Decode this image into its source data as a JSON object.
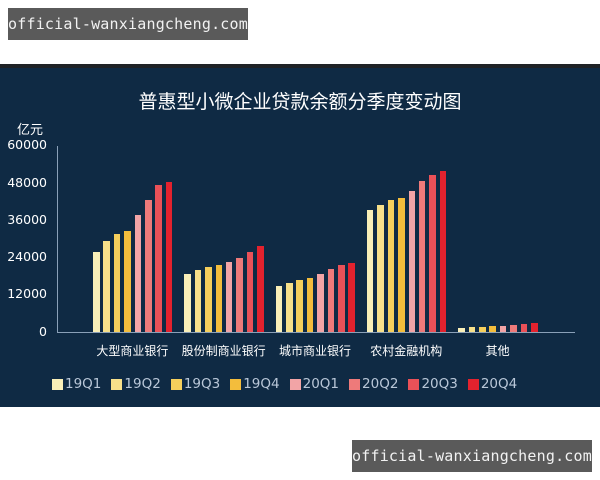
{
  "watermark_top": "official-wanxiangcheng.com",
  "watermark_bottom": "official-wanxiangcheng.com",
  "chart_data": {
    "type": "bar",
    "title": "普惠型小微企业贷款余额分季度变动图",
    "ylabel": "亿元",
    "xlabel": "",
    "ylim": [
      0,
      60000
    ],
    "yticks": [
      0,
      12000,
      24000,
      36000,
      48000,
      60000
    ],
    "grid": false,
    "legend_position": "bottom",
    "categories": [
      "大型商业银行",
      "股份制商业银行",
      "城市商业银行",
      "农村金融机构",
      "其他"
    ],
    "series": [
      {
        "name": "19Q1",
        "color": "#f9efb8",
        "values": [
          25600,
          18700,
          14800,
          39100,
          1200
        ]
      },
      {
        "name": "19Q2",
        "color": "#f7e08a",
        "values": [
          29200,
          19800,
          15800,
          40700,
          1400
        ]
      },
      {
        "name": "19Q3",
        "color": "#f5cf5c",
        "values": [
          31400,
          20800,
          16600,
          42300,
          1600
        ]
      },
      {
        "name": "19Q4",
        "color": "#f3bd3c",
        "values": [
          32400,
          21600,
          17400,
          43100,
          1800
        ]
      },
      {
        "name": "20Q1",
        "color": "#f2a4a6",
        "values": [
          37500,
          22300,
          18500,
          45400,
          1900
        ]
      },
      {
        "name": "20Q2",
        "color": "#ee7a7a",
        "values": [
          42400,
          23700,
          20200,
          48500,
          2100
        ]
      },
      {
        "name": "20Q3",
        "color": "#ea5158",
        "values": [
          47200,
          25600,
          21400,
          50500,
          2600
        ]
      },
      {
        "name": "20Q4",
        "color": "#e3222e",
        "values": [
          48200,
          27600,
          22100,
          51600,
          2800
        ]
      }
    ]
  },
  "colors": {
    "background": "#0f2a44",
    "axis": "#8aa0b8",
    "text": "#ffffff",
    "legend_text": "#b9c7d8"
  }
}
